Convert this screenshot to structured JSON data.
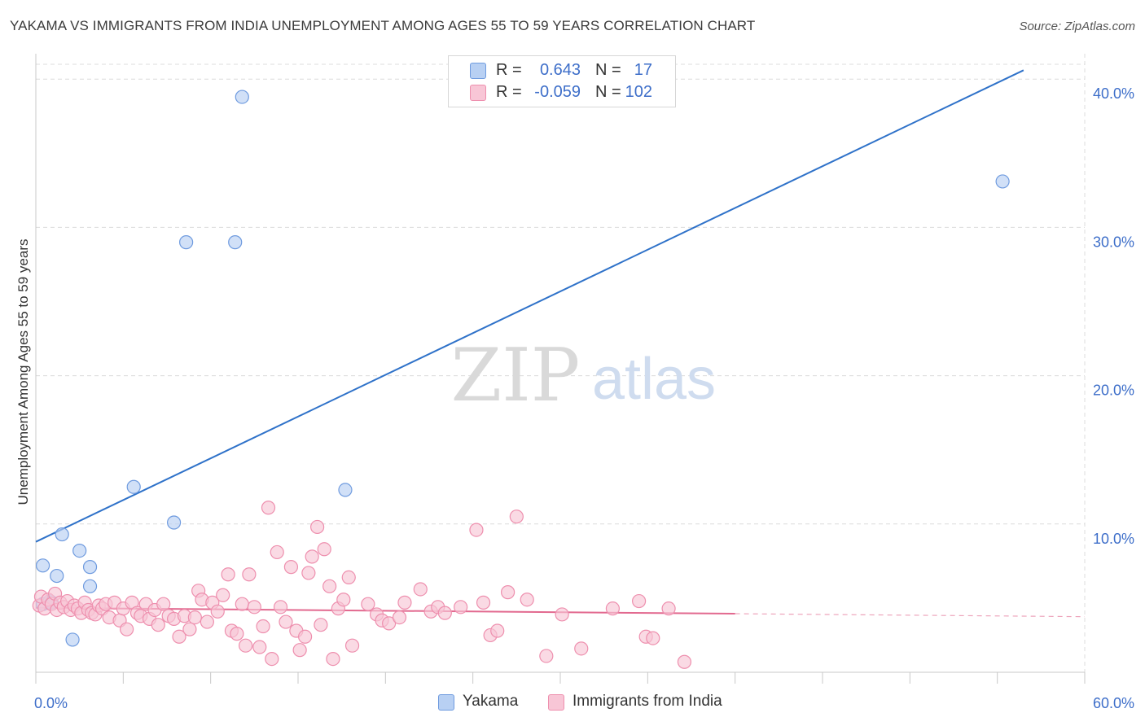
{
  "title": "YAKAMA VS IMMIGRANTS FROM INDIA UNEMPLOYMENT AMONG AGES 55 TO 59 YEARS CORRELATION CHART",
  "source": "Source: ZipAtlas.com",
  "watermark": {
    "zip": "ZIP",
    "atlas": "atlas"
  },
  "legend_top": {
    "rows": [
      {
        "r_label": "R =",
        "r_value": "0.643",
        "n_label": "N =",
        "n_value": "17"
      },
      {
        "r_label": "R =",
        "r_value": "-0.059",
        "n_label": "N =",
        "n_value": "102"
      }
    ]
  },
  "legend_bottom": {
    "yakama": "Yakama",
    "india": "Immigrants from India"
  },
  "colors": {
    "blue_fill": "#b8d0f3",
    "blue_stroke": "#6f9bdf",
    "blue_line": "#2f72c9",
    "pink_fill": "#f8c6d6",
    "pink_stroke": "#ee8fae",
    "pink_line": "#e2698f",
    "axis_text": "#3d6ec9",
    "grid": "#dcdcdc"
  },
  "chart_data": {
    "type": "scatter",
    "title": "YAKAMA VS IMMIGRANTS FROM INDIA UNEMPLOYMENT AMONG AGES 55 TO 59 YEARS CORRELATION CHART",
    "xlabel": "",
    "ylabel": "Unemployment Among Ages 55 to 59 years",
    "xlim": [
      0,
      60
    ],
    "ylim": [
      0,
      41
    ],
    "x_tick_labels": [
      {
        "value": 0,
        "label": "0.0%"
      },
      {
        "value": 60,
        "label": "60.0%"
      }
    ],
    "y_tick_labels": [
      {
        "value": 10,
        "label": "10.0%"
      },
      {
        "value": 20,
        "label": "20.0%"
      },
      {
        "value": 30,
        "label": "30.0%"
      },
      {
        "value": 40,
        "label": "40.0%"
      }
    ],
    "series": [
      {
        "name": "Yakama",
        "color": "blue",
        "points": [
          [
            0.4,
            4.6
          ],
          [
            0.4,
            7.2
          ],
          [
            0.8,
            4.8
          ],
          [
            1.2,
            6.5
          ],
          [
            1.5,
            9.3
          ],
          [
            2.1,
            2.2
          ],
          [
            2.5,
            8.2
          ],
          [
            3.1,
            7.1
          ],
          [
            3.1,
            5.8
          ],
          [
            5.6,
            12.5
          ],
          [
            7.9,
            10.1
          ],
          [
            8.6,
            29.0
          ],
          [
            11.4,
            29.0
          ],
          [
            11.8,
            38.8
          ],
          [
            17.7,
            12.3
          ],
          [
            55.3,
            33.1
          ],
          [
            0.9,
            4.7
          ]
        ],
        "trend": {
          "x": [
            0,
            56.5
          ],
          "y": [
            8.8,
            40.6
          ],
          "dashed_extension": false
        }
      },
      {
        "name": "Immigrants from India",
        "color": "pink",
        "points": [
          [
            0.2,
            4.5
          ],
          [
            0.3,
            5.1
          ],
          [
            0.5,
            4.3
          ],
          [
            0.7,
            4.9
          ],
          [
            0.9,
            4.6
          ],
          [
            1.1,
            5.3
          ],
          [
            1.2,
            4.2
          ],
          [
            1.4,
            4.7
          ],
          [
            1.6,
            4.4
          ],
          [
            1.8,
            4.8
          ],
          [
            2.0,
            4.2
          ],
          [
            2.2,
            4.5
          ],
          [
            2.4,
            4.3
          ],
          [
            2.6,
            4.0
          ],
          [
            2.8,
            4.7
          ],
          [
            3.0,
            4.2
          ],
          [
            3.2,
            4.0
          ],
          [
            3.4,
            3.9
          ],
          [
            3.6,
            4.5
          ],
          [
            3.8,
            4.3
          ],
          [
            4.0,
            4.6
          ],
          [
            4.2,
            3.7
          ],
          [
            4.5,
            4.7
          ],
          [
            4.8,
            3.5
          ],
          [
            5.0,
            4.3
          ],
          [
            5.2,
            2.9
          ],
          [
            5.5,
            4.7
          ],
          [
            5.8,
            4.0
          ],
          [
            6.0,
            3.8
          ],
          [
            6.3,
            4.6
          ],
          [
            6.5,
            3.6
          ],
          [
            6.8,
            4.2
          ],
          [
            7.0,
            3.2
          ],
          [
            7.3,
            4.6
          ],
          [
            7.6,
            3.8
          ],
          [
            7.9,
            3.6
          ],
          [
            8.2,
            2.4
          ],
          [
            8.5,
            3.8
          ],
          [
            8.8,
            2.9
          ],
          [
            9.1,
            3.7
          ],
          [
            9.3,
            5.5
          ],
          [
            9.5,
            4.9
          ],
          [
            9.8,
            3.4
          ],
          [
            10.1,
            4.7
          ],
          [
            10.4,
            4.1
          ],
          [
            10.7,
            5.2
          ],
          [
            11.0,
            6.6
          ],
          [
            11.2,
            2.8
          ],
          [
            11.5,
            2.6
          ],
          [
            11.8,
            4.6
          ],
          [
            12.0,
            1.8
          ],
          [
            12.2,
            6.6
          ],
          [
            12.5,
            4.4
          ],
          [
            12.8,
            1.7
          ],
          [
            13.0,
            3.1
          ],
          [
            13.3,
            11.1
          ],
          [
            13.5,
            0.9
          ],
          [
            13.8,
            8.1
          ],
          [
            14.0,
            4.4
          ],
          [
            14.3,
            3.4
          ],
          [
            14.6,
            7.1
          ],
          [
            14.9,
            2.8
          ],
          [
            15.1,
            1.5
          ],
          [
            15.4,
            2.4
          ],
          [
            15.6,
            6.7
          ],
          [
            15.8,
            7.8
          ],
          [
            16.1,
            9.8
          ],
          [
            16.3,
            3.2
          ],
          [
            16.5,
            8.3
          ],
          [
            16.8,
            5.8
          ],
          [
            17.0,
            0.9
          ],
          [
            17.3,
            4.3
          ],
          [
            17.6,
            4.9
          ],
          [
            17.9,
            6.4
          ],
          [
            18.1,
            1.8
          ],
          [
            19.0,
            4.6
          ],
          [
            19.5,
            3.9
          ],
          [
            19.8,
            3.5
          ],
          [
            20.2,
            3.3
          ],
          [
            21.1,
            4.7
          ],
          [
            22.0,
            5.6
          ],
          [
            22.6,
            4.1
          ],
          [
            23.0,
            4.4
          ],
          [
            23.4,
            4.0
          ],
          [
            24.3,
            4.4
          ],
          [
            25.2,
            9.6
          ],
          [
            25.6,
            4.7
          ],
          [
            26.0,
            2.5
          ],
          [
            26.4,
            2.8
          ],
          [
            27.0,
            5.4
          ],
          [
            27.5,
            10.5
          ],
          [
            28.1,
            4.9
          ],
          [
            29.2,
            1.1
          ],
          [
            30.1,
            3.9
          ],
          [
            31.2,
            1.6
          ],
          [
            33.0,
            4.3
          ],
          [
            34.5,
            4.8
          ],
          [
            34.9,
            2.4
          ],
          [
            35.3,
            2.3
          ],
          [
            36.2,
            4.3
          ],
          [
            37.1,
            0.7
          ],
          [
            20.8,
            3.7
          ]
        ],
        "trend": {
          "x": [
            0,
            40
          ],
          "y": [
            4.35,
            3.95
          ],
          "dashed_extension": {
            "x": [
              40,
              60
            ],
            "y": [
              3.95,
              3.75
            ]
          }
        }
      }
    ]
  }
}
